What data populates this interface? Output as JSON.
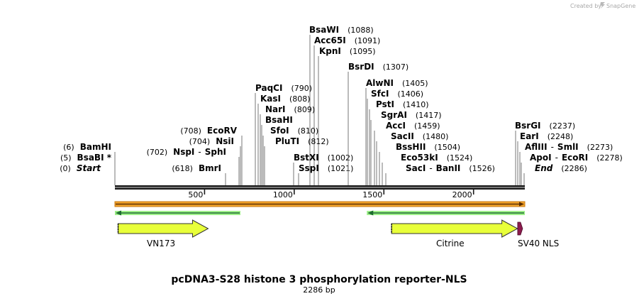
{
  "credit": {
    "prefix": "Created by",
    "app": "SnapGene"
  },
  "title": "pcDNA3-S28 histone 3 phosphorylation reporter-NLS",
  "length_label": "2286 bp",
  "sequence_length": 2286,
  "ticks": [
    500,
    1000,
    1500,
    2000
  ],
  "colors": {
    "backbone": "#1a1a1a",
    "fluor_arrow": "#e8ff3a",
    "fluor_outline": "#333333",
    "orf_fill": "#f3a42b",
    "orf_outline": "#c87a10",
    "primer_fill": "#1d6b2f",
    "primer_glow": "#9ff08a",
    "nls": "#8b1b4d"
  },
  "sites": [
    {
      "name": "BamHI",
      "pos": "(6)",
      "at": 6,
      "side": "left"
    },
    {
      "name": "BsaBI *",
      "pos": "(5)",
      "at": 5,
      "side": "left"
    },
    {
      "name": "Start",
      "pos": "(0)",
      "at": 0,
      "side": "left",
      "italic": true
    },
    {
      "name": "EcoRV",
      "pos": "(708)",
      "at": 708,
      "side": "left"
    },
    {
      "name": "NsiI",
      "pos": "(704)",
      "at": 704,
      "side": "left"
    },
    {
      "name": "NspI",
      "name2": "SphI",
      "pos": "(702)",
      "at": 702,
      "side": "left"
    },
    {
      "name": "BmrI",
      "pos": "(618)",
      "at": 618,
      "side": "left"
    },
    {
      "name": "BsaWI",
      "pos": "(1088)",
      "at": 1088,
      "side": "right"
    },
    {
      "name": "Acc65I",
      "pos": "(1091)",
      "at": 1091,
      "side": "right"
    },
    {
      "name": "KpnI",
      "pos": "(1095)",
      "at": 1095,
      "side": "right"
    },
    {
      "name": "PaqCI",
      "pos": "(790)",
      "at": 790,
      "side": "right"
    },
    {
      "name": "KasI",
      "pos": "(808)",
      "at": 808,
      "side": "right"
    },
    {
      "name": "NarI",
      "pos": "(809)",
      "at": 809,
      "side": "right"
    },
    {
      "name": "BsaHI",
      "pos": "",
      "at": 809,
      "side": "right"
    },
    {
      "name": "SfoI",
      "pos": "(810)",
      "at": 810,
      "side": "right"
    },
    {
      "name": "PluTI",
      "pos": "(812)",
      "at": 812,
      "side": "right"
    },
    {
      "name": "BstXI",
      "pos": "(1002)",
      "at": 1002,
      "side": "right"
    },
    {
      "name": "SspI",
      "pos": "(1021)",
      "at": 1021,
      "side": "right"
    },
    {
      "name": "BsrDI",
      "pos": "(1307)",
      "at": 1307,
      "side": "right"
    },
    {
      "name": "AlwNI",
      "pos": "(1405)",
      "at": 1405,
      "side": "right"
    },
    {
      "name": "SfcI",
      "pos": "(1406)",
      "at": 1406,
      "side": "right"
    },
    {
      "name": "PstI",
      "pos": "(1410)",
      "at": 1410,
      "side": "right"
    },
    {
      "name": "SgrAI",
      "pos": "(1417)",
      "at": 1417,
      "side": "right"
    },
    {
      "name": "AccI",
      "pos": "(1459)",
      "at": 1459,
      "side": "right"
    },
    {
      "name": "SacII",
      "pos": "(1480)",
      "at": 1480,
      "side": "right"
    },
    {
      "name": "BssHII",
      "pos": "(1504)",
      "at": 1504,
      "side": "right"
    },
    {
      "name": "Eco53kI",
      "pos": "(1524)",
      "at": 1524,
      "side": "right"
    },
    {
      "name": "SacI",
      "name2": "BanII",
      "pos": "(1526)",
      "at": 1526,
      "side": "right"
    },
    {
      "name": "BsrGI",
      "pos": "(2237)",
      "at": 2237,
      "side": "right"
    },
    {
      "name": "EarI",
      "pos": "(2248)",
      "at": 2248,
      "side": "right"
    },
    {
      "name": "AflIII",
      "name2": "SmlI",
      "pos": "(2273)",
      "at": 2273,
      "side": "right"
    },
    {
      "name": "ApoI",
      "name2": "EcoRI",
      "pos": "(2278)",
      "at": 2278,
      "side": "right"
    },
    {
      "name": "End",
      "pos": "(2286)",
      "at": 2286,
      "side": "right",
      "italic": true
    }
  ],
  "features": [
    {
      "type": "orf",
      "start": 0,
      "end": 2286,
      "direction": "forward"
    },
    {
      "type": "primer",
      "start": 0,
      "end": 700,
      "direction": "reverse"
    },
    {
      "type": "primer",
      "start": 1405,
      "end": 2286,
      "direction": "reverse"
    },
    {
      "type": "fluor",
      "name": "VN173",
      "start": 10,
      "end": 520,
      "direction": "forward"
    },
    {
      "type": "fluor",
      "name": "Citrine",
      "start": 1535,
      "end": 2245,
      "direction": "forward"
    },
    {
      "type": "nls",
      "name": "SV40 NLS",
      "start": 2250,
      "end": 2275,
      "direction": "forward"
    }
  ]
}
